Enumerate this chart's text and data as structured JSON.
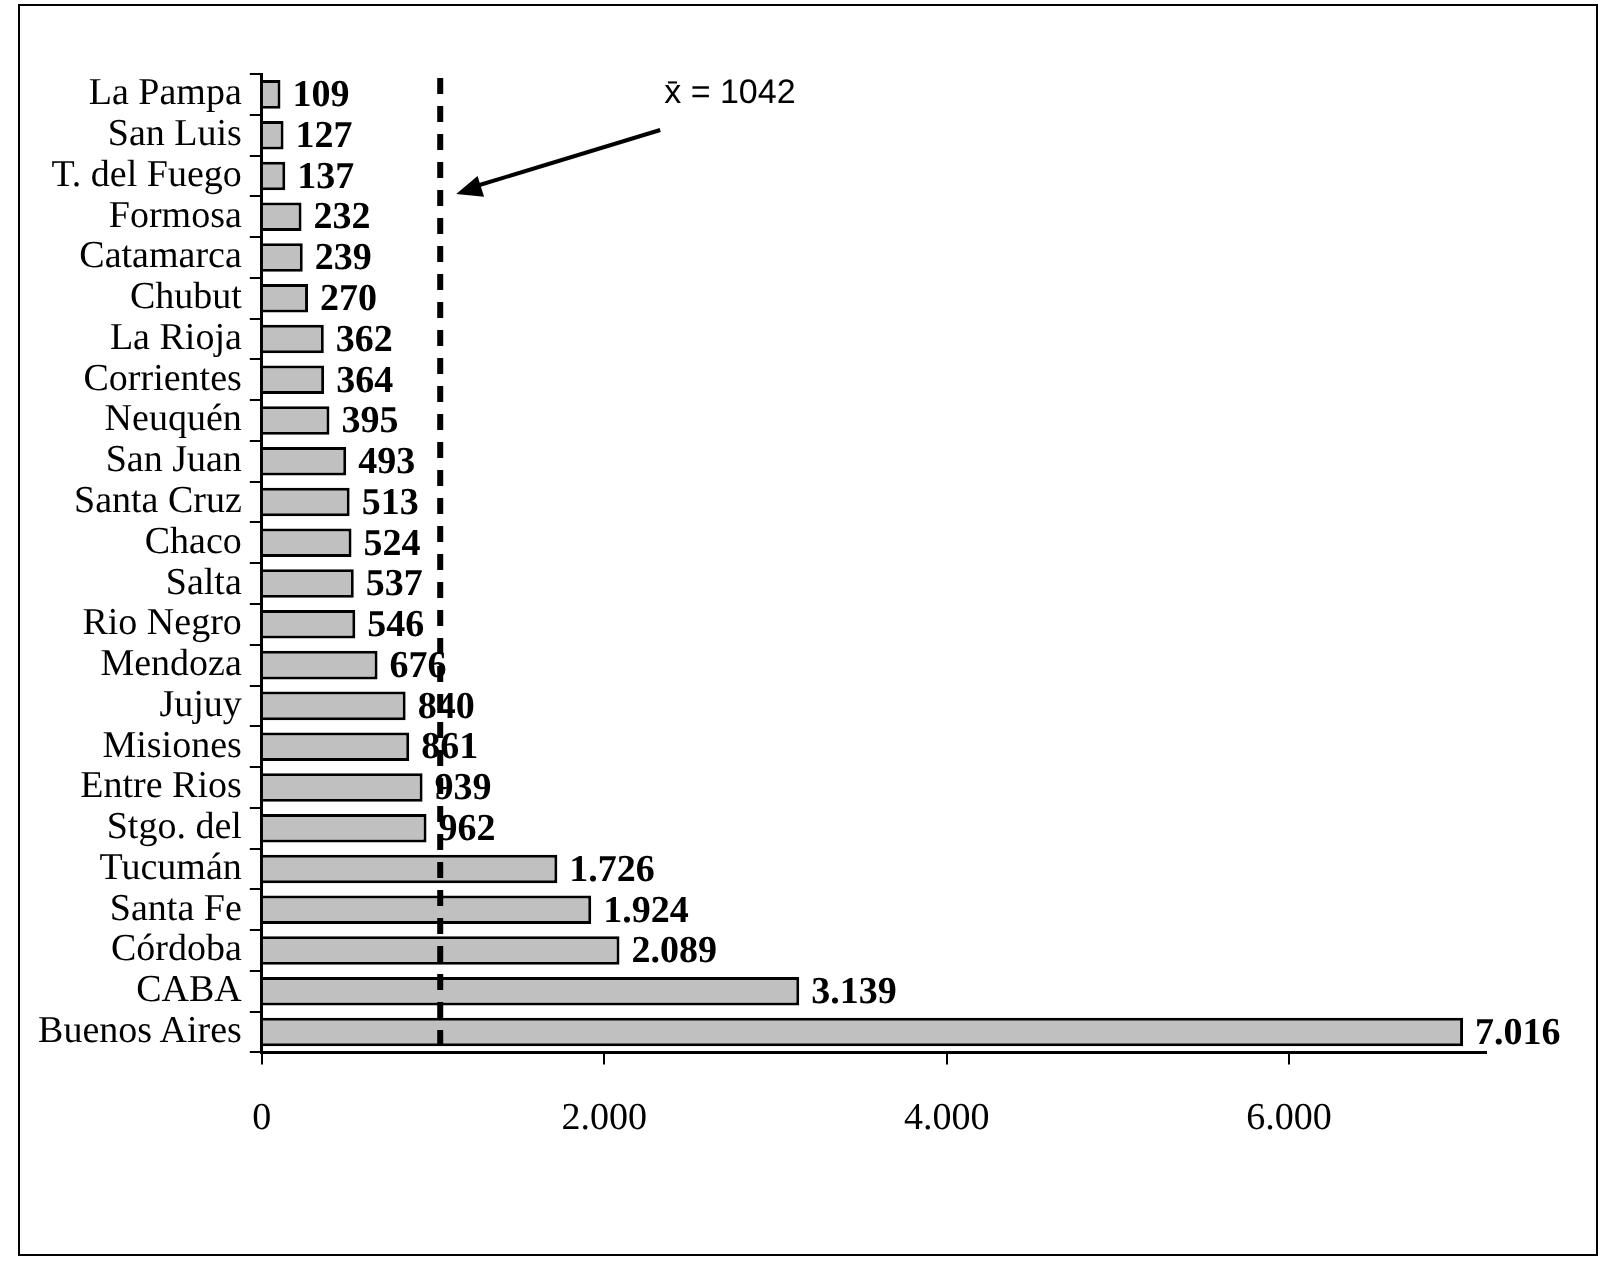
{
  "chart_data": {
    "type": "bar",
    "orientation": "horizontal",
    "categories": [
      "La Pampa",
      "San Luis",
      "T. del Fuego",
      "Formosa",
      "Catamarca",
      "Chubut",
      "La Rioja",
      "Corrientes",
      "Neuquén",
      "San Juan",
      "Santa Cruz",
      "Chaco",
      "Salta",
      "Rio Negro",
      "Mendoza",
      "Jujuy",
      "Misiones",
      "Entre Rios",
      "Stgo. del",
      "Tucumán",
      "Santa Fe",
      "Córdoba",
      "CABA",
      "Buenos Aires"
    ],
    "values": [
      109,
      127,
      137,
      232,
      239,
      270,
      362,
      364,
      395,
      493,
      513,
      524,
      537,
      546,
      676,
      840,
      861,
      939,
      962,
      1726,
      1924,
      2089,
      3139,
      7016
    ],
    "value_labels": [
      "109",
      "127",
      "137",
      "232",
      "239",
      "270",
      "362",
      "364",
      "395",
      "493",
      "513",
      "524",
      "537",
      "546",
      "676",
      "840",
      "861",
      "939",
      "962",
      "1.726",
      "1.924",
      "2.089",
      "3.139",
      "7.016"
    ],
    "color": "#c0c0c0",
    "xlim": [
      0,
      7150
    ],
    "xticks": [
      0,
      {
        "value": 2000,
        "label": "2.000"
      },
      {
        "value": 4000,
        "label": "4.000"
      },
      {
        "value": 6000,
        "label": "6.000"
      }
    ],
    "ref_lines": [
      {
        "axis": "x",
        "value": 1042,
        "label": "x̄ = 1042",
        "color": "#000000",
        "line_style": "dashed"
      }
    ],
    "legend": false
  }
}
